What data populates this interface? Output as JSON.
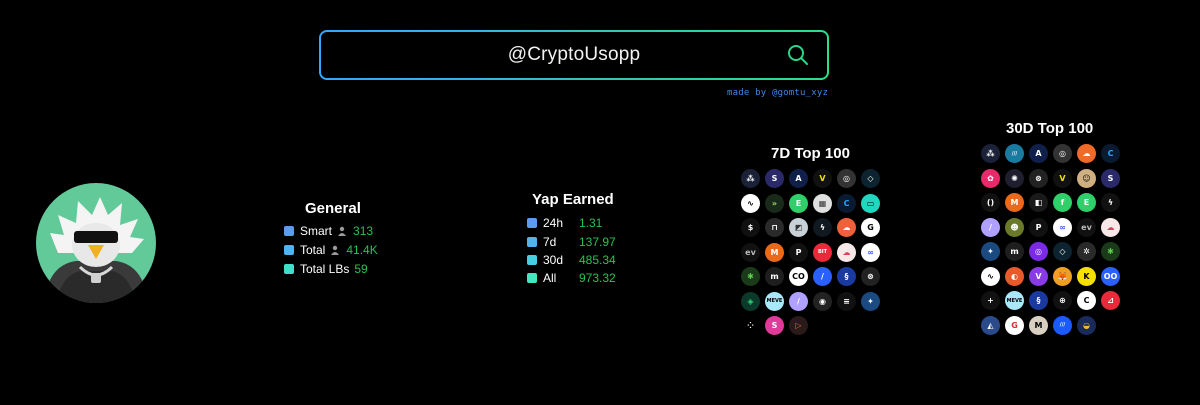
{
  "search": {
    "value": "@CryptoUsopp"
  },
  "credit": "made by @gomtu_xyz",
  "general": {
    "title": "General",
    "rows": [
      {
        "label": "Smart",
        "value": "313",
        "color": "#5a9cf0",
        "person": true
      },
      {
        "label": "Total",
        "value": "41.4K",
        "color": "#4fb4ef",
        "person": true
      },
      {
        "label": "Total LBs",
        "value": "59",
        "color": "#3fe0c8",
        "person": false
      }
    ]
  },
  "yap": {
    "title": "Yap Earned",
    "rows": [
      {
        "label": "24h",
        "value": "1.31",
        "color": "#5a9cf0"
      },
      {
        "label": "7d",
        "value": "137.97",
        "color": "#4fb4ef"
      },
      {
        "label": "30d",
        "value": "485.34",
        "color": "#45cfe0"
      },
      {
        "label": "All",
        "value": "973.32",
        "color": "#3fe8c0"
      }
    ]
  },
  "top7": {
    "title": "7D Top 100",
    "icons": [
      {
        "name": "token-1",
        "bg": "#1b2238",
        "glyph": "⁂"
      },
      {
        "name": "token-2",
        "bg": "#2a2a6a",
        "glyph": "S"
      },
      {
        "name": "token-3",
        "bg": "#10204a",
        "glyph": "A"
      },
      {
        "name": "token-4",
        "bg": "#111111",
        "glyph": "V",
        "fg": "#f5e000"
      },
      {
        "name": "token-5",
        "bg": "#333333",
        "glyph": "◎"
      },
      {
        "name": "token-6",
        "bg": "#0d2430",
        "glyph": "◇"
      },
      {
        "name": "token-7",
        "bg": "#ffffff",
        "glyph": "∿",
        "fg": "#000"
      },
      {
        "name": "token-8",
        "bg": "#1a2a1a",
        "glyph": "»",
        "fg": "#9ee26a"
      },
      {
        "name": "token-9",
        "bg": "#2fcf6a",
        "glyph": "E"
      },
      {
        "name": "token-10",
        "bg": "#e0e0e0",
        "glyph": "▦",
        "fg": "#333"
      },
      {
        "name": "token-11",
        "bg": "#0a1a30",
        "glyph": "C",
        "fg": "#27a6ff"
      },
      {
        "name": "token-12",
        "bg": "#20d8c0",
        "glyph": "▭",
        "fg": "#000"
      },
      {
        "name": "token-13",
        "bg": "#101010",
        "glyph": "$"
      },
      {
        "name": "token-14",
        "bg": "#2a2a2a",
        "glyph": "⊓"
      },
      {
        "name": "token-15",
        "bg": "#c8d0d8",
        "glyph": "◩",
        "fg": "#333"
      },
      {
        "name": "token-16",
        "bg": "#101820",
        "glyph": "ϟ"
      },
      {
        "name": "token-17",
        "bg": "#f0603a",
        "glyph": "☁"
      },
      {
        "name": "token-18",
        "bg": "#ffffff",
        "glyph": "G",
        "fg": "#000"
      },
      {
        "name": "token-19",
        "bg": "#111111",
        "glyph": "ev",
        "fg": "#bbb"
      },
      {
        "name": "token-20",
        "bg": "#e86a1a",
        "glyph": "M"
      },
      {
        "name": "token-21",
        "bg": "#111111",
        "glyph": "P"
      },
      {
        "name": "token-22",
        "bg": "#e82a3a",
        "glyph": "BIT"
      },
      {
        "name": "token-23",
        "bg": "#f8e8e8",
        "glyph": "☁",
        "fg": "#e0405a"
      },
      {
        "name": "token-24",
        "bg": "#ffffff",
        "glyph": "∞",
        "fg": "#3355ff"
      },
      {
        "name": "token-25",
        "bg": "#1a3a1a",
        "glyph": "✱",
        "fg": "#5ad04a"
      },
      {
        "name": "token-26",
        "bg": "#1e1e1e",
        "glyph": "m"
      },
      {
        "name": "token-27",
        "bg": "#ffffff",
        "glyph": "CO",
        "fg": "#000"
      },
      {
        "name": "token-28",
        "bg": "#2a60ff",
        "glyph": "/"
      },
      {
        "name": "token-29",
        "bg": "#1a3aa0",
        "glyph": "§"
      },
      {
        "name": "token-30",
        "bg": "#222222",
        "glyph": "⊗"
      },
      {
        "name": "token-31",
        "bg": "#0c3a2a",
        "glyph": "◈",
        "fg": "#2cd87a"
      },
      {
        "name": "token-32",
        "bg": "#a8e8f8",
        "glyph": "MEVE",
        "fg": "#000"
      },
      {
        "name": "token-33",
        "bg": "#b0a0ff",
        "glyph": "/"
      },
      {
        "name": "token-34",
        "bg": "#222222",
        "glyph": "◉"
      },
      {
        "name": "token-35",
        "bg": "#111111",
        "glyph": "≡"
      },
      {
        "name": "token-36",
        "bg": "#1a4a80",
        "glyph": "✦"
      },
      {
        "name": "token-37",
        "bg": "#000000",
        "glyph": "⁘"
      },
      {
        "name": "token-38",
        "bg": "#e03a9a",
        "glyph": "S"
      },
      {
        "name": "token-39",
        "bg": "#2a1a1a",
        "glyph": "▷",
        "fg": "#ff6a2a"
      }
    ]
  },
  "top30": {
    "title": "30D Top 100",
    "icons": [
      {
        "name": "token-a1",
        "bg": "#1b2238",
        "glyph": "⁂"
      },
      {
        "name": "token-a2",
        "bg": "#1a7aa0",
        "glyph": "///"
      },
      {
        "name": "token-a3",
        "bg": "#10204a",
        "glyph": "A"
      },
      {
        "name": "token-a4",
        "bg": "#333333",
        "glyph": "◎"
      },
      {
        "name": "token-a5",
        "bg": "#f06a2a",
        "glyph": "☁"
      },
      {
        "name": "token-a6",
        "bg": "#0a1a30",
        "glyph": "C",
        "fg": "#27a6ff"
      },
      {
        "name": "token-a7",
        "bg": "#e82a6a",
        "glyph": "✿"
      },
      {
        "name": "token-a8",
        "bg": "#1e1e2e",
        "glyph": "✺"
      },
      {
        "name": "token-a9",
        "bg": "#222222",
        "glyph": "⊗"
      },
      {
        "name": "token-a10",
        "bg": "#111111",
        "glyph": "V",
        "fg": "#f5e000"
      },
      {
        "name": "token-a11",
        "bg": "#d0b080",
        "glyph": "☺",
        "fg": "#000"
      },
      {
        "name": "token-a12",
        "bg": "#2a2a6a",
        "glyph": "S"
      },
      {
        "name": "token-a13",
        "bg": "#111111",
        "glyph": "()"
      },
      {
        "name": "token-a14",
        "bg": "#e86a1a",
        "glyph": "M"
      },
      {
        "name": "token-a15",
        "bg": "#1a1a1a",
        "glyph": "◧"
      },
      {
        "name": "token-a16",
        "bg": "#2fcf6a",
        "glyph": "f"
      },
      {
        "name": "token-a17",
        "bg": "#2fcf6a",
        "glyph": "E"
      },
      {
        "name": "token-a18",
        "bg": "#111111",
        "glyph": "ϟ"
      },
      {
        "name": "token-a19",
        "bg": "#b0a0ff",
        "glyph": "/"
      },
      {
        "name": "token-a20",
        "bg": "#6a7a2a",
        "glyph": "☻"
      },
      {
        "name": "token-a21",
        "bg": "#111111",
        "glyph": "P"
      },
      {
        "name": "token-a22",
        "bg": "#ffffff",
        "glyph": "∞",
        "fg": "#3355ff"
      },
      {
        "name": "token-a23",
        "bg": "#111111",
        "glyph": "ev",
        "fg": "#bbb"
      },
      {
        "name": "token-a24",
        "bg": "#f8e8e8",
        "glyph": "☁",
        "fg": "#e0405a"
      },
      {
        "name": "token-a25",
        "bg": "#1a4a80",
        "glyph": "✦"
      },
      {
        "name": "token-a26",
        "bg": "#1e1e1e",
        "glyph": "m"
      },
      {
        "name": "token-a27",
        "bg": "#7a2ae8",
        "glyph": "◎"
      },
      {
        "name": "token-a28",
        "bg": "#0d2430",
        "glyph": "◇"
      },
      {
        "name": "token-a29",
        "bg": "#2a2a2a",
        "glyph": "✲"
      },
      {
        "name": "token-a30",
        "bg": "#1a3a1a",
        "glyph": "✱",
        "fg": "#5ad04a"
      },
      {
        "name": "token-a31",
        "bg": "#ffffff",
        "glyph": "∿",
        "fg": "#000"
      },
      {
        "name": "token-a32",
        "bg": "#e85a2a",
        "glyph": "◐"
      },
      {
        "name": "token-a33",
        "bg": "#8a3ae8",
        "glyph": "V"
      },
      {
        "name": "token-a34",
        "bg": "#f0a020",
        "glyph": "🦊"
      },
      {
        "name": "token-a35",
        "bg": "#f5e000",
        "glyph": "K",
        "fg": "#000"
      },
      {
        "name": "token-a36",
        "bg": "#2a60ff",
        "glyph": "OO"
      },
      {
        "name": "token-a37",
        "bg": "#111111",
        "glyph": "+"
      },
      {
        "name": "token-a38",
        "bg": "#a8e8f8",
        "glyph": "MEVE",
        "fg": "#000"
      },
      {
        "name": "token-a39",
        "bg": "#1a3aa0",
        "glyph": "§"
      },
      {
        "name": "token-a40",
        "bg": "#111111",
        "glyph": "⊕"
      },
      {
        "name": "token-a41",
        "bg": "#ffffff",
        "glyph": "C",
        "fg": "#000"
      },
      {
        "name": "token-a42",
        "bg": "#e82a3a",
        "glyph": "⊿"
      },
      {
        "name": "token-a43",
        "bg": "#2a4a8a",
        "glyph": "◭"
      },
      {
        "name": "token-a44",
        "bg": "#ffffff",
        "glyph": "G",
        "fg": "#e02a2a"
      },
      {
        "name": "token-a45",
        "bg": "#d8d0c0",
        "glyph": "M",
        "fg": "#000"
      },
      {
        "name": "token-a46",
        "bg": "#1a5aff",
        "glyph": "///"
      },
      {
        "name": "token-a47",
        "bg": "#1a2a5a",
        "glyph": "◒",
        "fg": "#f0c020"
      }
    ]
  }
}
